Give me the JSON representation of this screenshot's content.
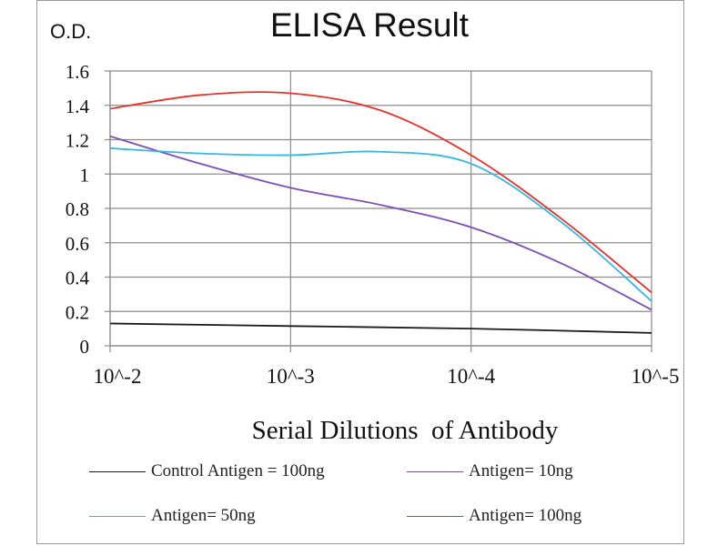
{
  "chart_data": {
    "type": "line",
    "title": "ELISA Result",
    "ylabel": "O.D.",
    "xlabel": "Serial Dilutions  of Antibody",
    "categories": [
      "10^-2",
      "10^-3",
      "10^-4",
      "10^-5"
    ],
    "ylim": [
      0,
      1.6
    ],
    "yticks": [
      "0",
      "0.2",
      "0.4",
      "0.6",
      "0.8",
      "1",
      "1.2",
      "1.4",
      "1.6"
    ],
    "grid": true,
    "legend_position": "bottom",
    "series": [
      {
        "name": "Control Antigen = 100ng",
        "color": "#1a1a1a",
        "x": [
          0,
          1,
          2,
          3
        ],
        "values": [
          0.13,
          0.115,
          0.1,
          0.075
        ]
      },
      {
        "name": "Antigen= 10ng",
        "color": "#7b4fb4",
        "x": [
          0,
          0.5,
          1,
          1.5,
          2,
          2.5,
          3
        ],
        "values": [
          1.22,
          1.06,
          0.92,
          0.82,
          0.69,
          0.48,
          0.21
        ]
      },
      {
        "name": "Antigen= 50ng",
        "color": "#35b7e5",
        "x": [
          0,
          0.5,
          1,
          1.5,
          2,
          2.5,
          3
        ],
        "values": [
          1.15,
          1.12,
          1.11,
          1.13,
          1.06,
          0.72,
          0.26
        ]
      },
      {
        "name": "Antigen= 100ng",
        "color": "#e8312b",
        "x": [
          0,
          0.5,
          1,
          1.5,
          2,
          2.5,
          3
        ],
        "values": [
          1.38,
          1.46,
          1.47,
          1.37,
          1.11,
          0.74,
          0.31
        ]
      }
    ]
  }
}
